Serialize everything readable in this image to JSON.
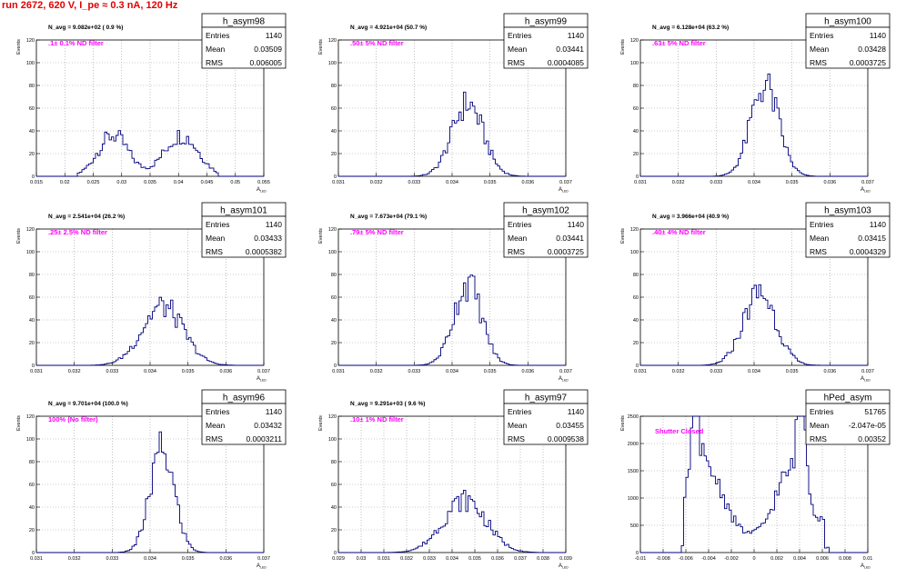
{
  "page_title": "run 2672,   620 V, I_pe ≈ 0.3 nA, 120 Hz",
  "colors": {
    "title": "#e00000",
    "annotation": "#ff00ff",
    "histogram": "#00007f",
    "grid": "#999999"
  },
  "chart_data": [
    {
      "type": "histogram",
      "name": "h_asym98",
      "stats": [
        [
          "Entries",
          "1140"
        ],
        [
          "Mean",
          "0.03509"
        ],
        [
          "RMS",
          "0.006005"
        ]
      ],
      "n_avg": "N_avg = 9.082e+02 ( 0.9 %)",
      "filter": ".1± 0.1% ND filter",
      "ylabel": "Events",
      "xlabel": "A_{LED}",
      "xlim": [
        0.015,
        0.055
      ],
      "ylim": [
        0,
        120
      ],
      "xticks": [
        "0.015",
        "0.02",
        "0.025",
        "0.03",
        "0.035",
        "0.04",
        "0.045",
        "0.05",
        "0.055"
      ],
      "xtick_values": [
        0.015,
        0.02,
        0.025,
        0.03,
        0.035,
        0.04,
        0.045,
        0.05,
        0.055
      ],
      "yticks": [
        "0",
        "20",
        "40",
        "60",
        "80",
        "100",
        "120"
      ],
      "ytick_values": [
        0,
        20,
        40,
        60,
        80,
        100,
        120
      ],
      "peaks": [
        [
          0.0285,
          0.0027,
          36
        ],
        [
          0.0405,
          0.003,
          36
        ]
      ],
      "range": [
        0.0222,
        0.0468
      ]
    },
    {
      "type": "histogram",
      "name": "h_asym99",
      "stats": [
        [
          "Entries",
          "1140"
        ],
        [
          "Mean",
          "0.03441"
        ],
        [
          "RMS",
          "0.0004085"
        ]
      ],
      "n_avg": "N_avg = 4.921e+04 (50.7 %)",
      "filter": ".50± 5% ND filter",
      "ylabel": "Events",
      "xlabel": "A_{LED}",
      "xlim": [
        0.031,
        0.037
      ],
      "ylim": [
        0,
        120
      ],
      "xticks": [
        "0.031",
        "0.032",
        "0.033",
        "0.034",
        "0.035",
        "0.036",
        "0.037"
      ],
      "xtick_values": [
        0.031,
        0.032,
        0.033,
        0.034,
        0.035,
        0.036,
        0.037
      ],
      "yticks": [
        "0",
        "20",
        "40",
        "60",
        "80",
        "100",
        "120"
      ],
      "ytick_values": [
        0,
        20,
        40,
        60,
        80,
        100,
        120
      ],
      "peaks": [
        [
          0.03441,
          0.00041,
          64
        ]
      ],
      "range": [
        0.0329,
        0.036
      ]
    },
    {
      "type": "histogram",
      "name": "h_asym100",
      "stats": [
        [
          "Entries",
          "1140"
        ],
        [
          "Mean",
          "0.03428"
        ],
        [
          "RMS",
          "0.0003725"
        ]
      ],
      "n_avg": "N_avg = 6.128e+04 (63.2 %)",
      "filter": ".63± 5% ND filter",
      "ylabel": "Events",
      "xlabel": "A_{LED}",
      "xlim": [
        0.031,
        0.037
      ],
      "ylim": [
        0,
        120
      ],
      "xticks": [
        "0.031",
        "0.032",
        "0.033",
        "0.034",
        "0.035",
        "0.036",
        "0.037"
      ],
      "xtick_values": [
        0.031,
        0.032,
        0.033,
        0.034,
        0.035,
        0.036,
        0.037
      ],
      "yticks": [
        "0",
        "20",
        "40",
        "60",
        "80",
        "100",
        "120"
      ],
      "ytick_values": [
        0,
        20,
        40,
        60,
        80,
        100,
        120
      ],
      "peaks": [
        [
          0.03428,
          0.00037,
          80
        ]
      ],
      "range": [
        0.0328,
        0.0358
      ]
    },
    {
      "type": "histogram",
      "name": "h_asym101",
      "stats": [
        [
          "Entries",
          "1140"
        ],
        [
          "Mean",
          "0.03433"
        ],
        [
          "RMS",
          "0.0005382"
        ]
      ],
      "n_avg": "N_avg = 2.541e+04 (26.2 %)",
      "filter": ".25± 2.5% ND filter",
      "ylabel": "Events",
      "xlabel": "A_{LED}",
      "xlim": [
        0.031,
        0.037
      ],
      "ylim": [
        0,
        120
      ],
      "xticks": [
        "0.031",
        "0.032",
        "0.033",
        "0.034",
        "0.035",
        "0.036",
        "0.037"
      ],
      "xtick_values": [
        0.031,
        0.032,
        0.033,
        0.034,
        0.035,
        0.036,
        0.037
      ],
      "yticks": [
        "0",
        "20",
        "40",
        "60",
        "80",
        "100",
        "120"
      ],
      "ytick_values": [
        0,
        20,
        40,
        60,
        80,
        100,
        120
      ],
      "peaks": [
        [
          0.03433,
          0.00054,
          52
        ]
      ],
      "range": [
        0.0322,
        0.0362
      ]
    },
    {
      "type": "histogram",
      "name": "h_asym102",
      "stats": [
        [
          "Entries",
          "1140"
        ],
        [
          "Mean",
          "0.03441"
        ],
        [
          "RMS",
          "0.0003725"
        ]
      ],
      "n_avg": "N_avg = 7.673e+04 (79.1 %)",
      "filter": ".79± 5% ND filter",
      "ylabel": "Events",
      "xlabel": "A_{LED}",
      "xlim": [
        0.031,
        0.037
      ],
      "ylim": [
        0,
        120
      ],
      "xticks": [
        "0.031",
        "0.032",
        "0.033",
        "0.034",
        "0.035",
        "0.036",
        "0.037"
      ],
      "xtick_values": [
        0.031,
        0.032,
        0.033,
        0.034,
        0.035,
        0.036,
        0.037
      ],
      "yticks": [
        "0",
        "20",
        "40",
        "60",
        "80",
        "100",
        "120"
      ],
      "ytick_values": [
        0,
        20,
        40,
        60,
        80,
        100,
        120
      ],
      "peaks": [
        [
          0.03441,
          0.00037,
          72
        ]
      ],
      "range": [
        0.033,
        0.036
      ]
    },
    {
      "type": "histogram",
      "name": "h_asym103",
      "stats": [
        [
          "Entries",
          "1140"
        ],
        [
          "Mean",
          "0.03415"
        ],
        [
          "RMS",
          "0.0004329"
        ]
      ],
      "n_avg": "N_avg = 3.966e+04 (40.9 %)",
      "filter": ".40± 4% ND filter",
      "ylabel": "Events",
      "xlabel": "A_{LED}",
      "xlim": [
        0.031,
        0.037
      ],
      "ylim": [
        0,
        120
      ],
      "xticks": [
        "0.031",
        "0.032",
        "0.033",
        "0.034",
        "0.035",
        "0.036",
        "0.037"
      ],
      "xtick_values": [
        0.031,
        0.032,
        0.033,
        0.034,
        0.035,
        0.036,
        0.037
      ],
      "yticks": [
        "0",
        "20",
        "40",
        "60",
        "80",
        "100",
        "120"
      ],
      "ytick_values": [
        0,
        20,
        40,
        60,
        80,
        100,
        120
      ],
      "peaks": [
        [
          0.03415,
          0.00043,
          64
        ]
      ],
      "range": [
        0.0326,
        0.036
      ]
    },
    {
      "type": "histogram",
      "name": "h_asym96",
      "stats": [
        [
          "Entries",
          "1140"
        ],
        [
          "Mean",
          "0.03432"
        ],
        [
          "RMS",
          "0.0003211"
        ]
      ],
      "n_avg": "N_avg = 9.701e+04 (100.0 %)",
      "filter": "100% (No filter)",
      "ylabel": "Events",
      "xlabel": "A_{LED}",
      "xlim": [
        0.031,
        0.037
      ],
      "ylim": [
        0,
        120
      ],
      "xticks": [
        "0.031",
        "0.032",
        "0.033",
        "0.034",
        "0.035",
        "0.036",
        "0.037"
      ],
      "xtick_values": [
        0.031,
        0.032,
        0.033,
        0.034,
        0.035,
        0.036,
        0.037
      ],
      "yticks": [
        "0",
        "20",
        "40",
        "60",
        "80",
        "100",
        "120"
      ],
      "ytick_values": [
        0,
        20,
        40,
        60,
        80,
        100,
        120
      ],
      "peaks": [
        [
          0.03432,
          0.00032,
          90
        ]
      ],
      "range": [
        0.033,
        0.0356
      ]
    },
    {
      "type": "histogram",
      "name": "h_asym97",
      "stats": [
        [
          "Entries",
          "1140"
        ],
        [
          "Mean",
          "0.03455"
        ],
        [
          "RMS",
          "0.0009538"
        ]
      ],
      "n_avg": "N_avg = 9.291e+03 ( 9.6 %)",
      "filter": ".10± 1% ND filter",
      "ylabel": "Events",
      "xlabel": "A_{LED}",
      "xlim": [
        0.029,
        0.039
      ],
      "ylim": [
        0,
        120
      ],
      "xticks": [
        "0.029",
        "0.03",
        "0.031",
        "0.032",
        "0.033",
        "0.034",
        "0.035",
        "0.036",
        "0.037",
        "0.038",
        "0.039"
      ],
      "xtick_values": [
        0.029,
        0.03,
        0.031,
        0.032,
        0.033,
        0.034,
        0.035,
        0.036,
        0.037,
        0.038,
        0.039
      ],
      "yticks": [
        "0",
        "20",
        "40",
        "60",
        "80",
        "100",
        "120"
      ],
      "ytick_values": [
        0,
        20,
        40,
        60,
        80,
        100,
        120
      ],
      "peaks": [
        [
          0.03455,
          0.00095,
          46
        ]
      ],
      "range": [
        0.0312,
        0.0378
      ]
    },
    {
      "type": "histogram",
      "name": "hPed_asym",
      "stats": [
        [
          "Entries",
          "51765"
        ],
        [
          "Mean",
          "-2.047e-05"
        ],
        [
          "RMS",
          "0.00352"
        ]
      ],
      "n_avg": "",
      "filter": "Shutter Closed",
      "ylabel": "Events",
      "xlabel": "A_{LED}",
      "xlim": [
        -0.01,
        0.01
      ],
      "ylim": [
        0,
        2500
      ],
      "xticks": [
        "-0.01",
        "-0.008",
        "-0.006",
        "-0.004",
        "-0.002",
        "0",
        "0.002",
        "0.004",
        "0.006",
        "0.008",
        "0.01"
      ],
      "xtick_values": [
        -0.01,
        -0.008,
        -0.006,
        -0.004,
        -0.002,
        0,
        0.002,
        0.004,
        0.006,
        0.008,
        0.01
      ],
      "yticks": [
        "0",
        "500",
        "1000",
        "1500",
        "2000",
        "2500"
      ],
      "ytick_values": [
        0,
        500,
        1000,
        1500,
        2000,
        2500
      ],
      "pedestal": true,
      "range": [
        -0.0065,
        0.0066
      ]
    }
  ]
}
